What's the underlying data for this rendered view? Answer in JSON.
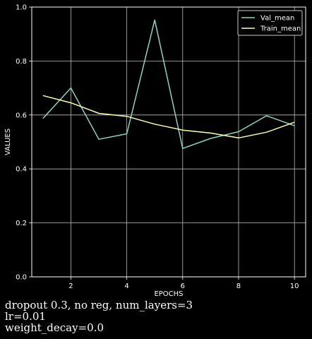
{
  "chart_data": {
    "type": "line",
    "title": "",
    "xlabel": "EPOCHS",
    "ylabel": "VALUES",
    "xlim": [
      0.6,
      10.4
    ],
    "ylim": [
      0.0,
      1.0
    ],
    "x_ticks": [
      2,
      4,
      6,
      8,
      10
    ],
    "y_ticks": [
      0.0,
      0.2,
      0.4,
      0.6,
      0.8,
      1.0
    ],
    "y_tick_labels": [
      "0.0",
      "0.2",
      "0.4",
      "0.6",
      "0.8",
      "1.0"
    ],
    "grid": true,
    "legend_position": "top-right",
    "x": [
      1,
      2,
      3,
      4,
      5,
      6,
      7,
      8,
      9,
      10
    ],
    "series": [
      {
        "name": "Val_mean",
        "color": "#8dd3c7",
        "values": [
          0.587,
          0.7,
          0.51,
          0.53,
          0.952,
          0.476,
          0.513,
          0.538,
          0.597,
          0.56
        ]
      },
      {
        "name": "Train_mean",
        "color": "#feffb3",
        "values": [
          0.672,
          0.645,
          0.606,
          0.595,
          0.566,
          0.544,
          0.533,
          0.515,
          0.536,
          0.573
        ]
      }
    ]
  },
  "caption": {
    "line1": "dropout 0.3, no reg, num_layers=3",
    "line2": "lr=0.01",
    "line3": "weight_decay=0.0"
  }
}
